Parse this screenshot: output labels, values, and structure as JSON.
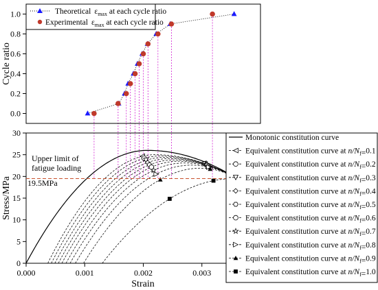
{
  "chart_data": [
    {
      "type": "scatter",
      "xlabel": "",
      "ylabel": "Cycle ratio",
      "ylim": [
        -0.1,
        1.1
      ],
      "yticks": [
        "0.0",
        "0.2",
        "0.4",
        "0.6",
        "0.8",
        "1.0"
      ],
      "grid": false,
      "legend_position": "top-left",
      "series": [
        {
          "name": "Theoretical",
          "eps": "ε",
          "sub": "max",
          "tail": " at each cycle ratio",
          "color": "#1a1aff",
          "marker": "triangle",
          "points": [
            [
              0.00105,
              0.0
            ],
            [
              0.00158,
              0.1
            ],
            [
              0.00168,
              0.2
            ],
            [
              0.00174,
              0.3
            ],
            [
              0.00183,
              0.4
            ],
            [
              0.0019,
              0.5
            ],
            [
              0.00198,
              0.6
            ],
            [
              0.00207,
              0.7
            ],
            [
              0.00222,
              0.8
            ],
            [
              0.00246,
              0.9
            ],
            [
              0.00355,
              1.0
            ]
          ]
        },
        {
          "name": "Experimental",
          "eps": "ε",
          "sub": "max",
          "tail": " at each cycle ratio",
          "color": "#c0392b",
          "marker": "circle",
          "points": [
            [
              0.00116,
              0.0
            ],
            [
              0.00157,
              0.1
            ],
            [
              0.00171,
              0.2
            ],
            [
              0.00178,
              0.3
            ],
            [
              0.00186,
              0.4
            ],
            [
              0.00193,
              0.5
            ],
            [
              0.002,
              0.6
            ],
            [
              0.00208,
              0.7
            ],
            [
              0.00225,
              0.8
            ],
            [
              0.00248,
              0.9
            ],
            [
              0.00318,
              1.0
            ]
          ]
        }
      ]
    },
    {
      "type": "line",
      "xlabel": "Strain",
      "ylabel": "Stress/MPa",
      "xlim": [
        0.0,
        0.004
      ],
      "ylim": [
        0,
        30
      ],
      "xticks": [
        "0.000",
        "0.001",
        "0.002",
        "0.003",
        "0.004"
      ],
      "yticks": [
        "0",
        "5",
        "10",
        "15",
        "20",
        "25",
        "30"
      ],
      "grid": false,
      "legend_position": "right",
      "peak": {
        "strain": 0.00207,
        "stress": 26.0
      },
      "monotonic_end_strain": 0.0036,
      "fatigue_limit": {
        "value": 19.5,
        "label": "19.5MPa",
        "line1": "Upper limit of",
        "line2": "fatigue loading",
        "color": "#c8502a"
      },
      "monotonic": {
        "name": "Monotonic constitution curve"
      },
      "equivalent": [
        {
          "prefix": "Equivalent constitution curve at ",
          "ratio": "0.1",
          "residual": 0.00037,
          "peak_strain": 0.0022,
          "peak": 25.0,
          "marker": "tri-left"
        },
        {
          "prefix": "Equivalent constitution curve at ",
          "ratio": "0.2",
          "residual": 0.00043,
          "peak_strain": 0.00228,
          "peak": 24.7,
          "marker": "circle"
        },
        {
          "prefix": "Equivalent constitution curve at ",
          "ratio": "0.3",
          "residual": 0.00049,
          "peak_strain": 0.00236,
          "peak": 24.4,
          "marker": "tri-down"
        },
        {
          "prefix": "Equivalent constitution curve at ",
          "ratio": "0.4",
          "residual": 0.00055,
          "peak_strain": 0.00244,
          "peak": 24.1,
          "marker": "diamond"
        },
        {
          "prefix": "Equivalent constitution curve at ",
          "ratio": "0.5",
          "residual": 0.00061,
          "peak_strain": 0.00252,
          "peak": 23.8,
          "marker": "hexagon"
        },
        {
          "prefix": "Equivalent constitution curve at ",
          "ratio": "0.6",
          "residual": 0.00068,
          "peak_strain": 0.0026,
          "peak": 23.5,
          "marker": "circle"
        },
        {
          "prefix": "Equivalent constitution curve at ",
          "ratio": "0.7",
          "residual": 0.00075,
          "peak_strain": 0.0027,
          "peak": 23.1,
          "marker": "star"
        },
        {
          "prefix": "Equivalent constitution curve at ",
          "ratio": "0.8",
          "residual": 0.00084,
          "peak_strain": 0.00282,
          "peak": 22.6,
          "marker": "tri-right"
        },
        {
          "prefix": "Equivalent constitution curve at ",
          "ratio": "0.9",
          "residual": 0.00098,
          "peak_strain": 0.00298,
          "peak": 21.9,
          "marker": "filled-triangle"
        },
        {
          "prefix": "Equivalent constitution curve at ",
          "ratio": "1.0",
          "residual": 0.0013,
          "peak_strain": 0.00355,
          "peak": 19.5,
          "marker": "filled-square"
        }
      ]
    }
  ]
}
